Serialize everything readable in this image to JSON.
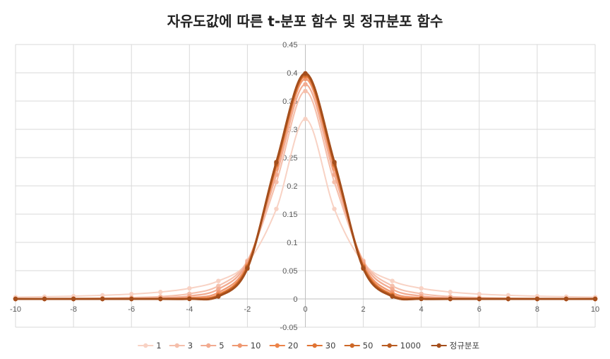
{
  "chart_data": {
    "type": "line",
    "title": "자유도값에 따른 t-분포 함수 및 정규분포 함수",
    "xlabel": "",
    "ylabel": "",
    "xlim": [
      -10,
      10
    ],
    "ylim": [
      -0.05,
      0.45
    ],
    "x_ticks": [
      "-10",
      "-8",
      "-6",
      "-4",
      "-2",
      "0",
      "2",
      "4",
      "6",
      "8",
      "10"
    ],
    "y_ticks": [
      "-0.05",
      "0",
      "0.05",
      "0.1",
      "0.15",
      "0.2",
      "0.25",
      "0.3",
      "0.35",
      "0.4",
      "0.45"
    ],
    "grid": true,
    "legend_position": "bottom",
    "x": [
      -10,
      -9,
      -8,
      -7,
      -6,
      -5,
      -4,
      -3,
      -2,
      -1,
      0,
      1,
      2,
      3,
      4,
      5,
      6,
      7,
      8,
      9,
      10
    ],
    "series": [
      {
        "name": "1",
        "color": "#f8d2c4",
        "values": [
          0.0032,
          0.0039,
          0.0049,
          0.0064,
          0.0086,
          0.0122,
          0.0187,
          0.0318,
          0.0637,
          0.1592,
          0.3183,
          0.1592,
          0.0637,
          0.0318,
          0.0187,
          0.0122,
          0.0086,
          0.0064,
          0.0049,
          0.0039,
          0.0032
        ]
      },
      {
        "name": "3",
        "color": "#f5bfab",
        "values": [
          0.0003,
          0.0005,
          0.0008,
          0.0013,
          0.0024,
          0.0042,
          0.0092,
          0.023,
          0.0675,
          0.2067,
          0.3676,
          0.2067,
          0.0675,
          0.023,
          0.0092,
          0.0042,
          0.0024,
          0.0013,
          0.0008,
          0.0005,
          0.0003
        ]
      },
      {
        "name": "5",
        "color": "#f2ab91",
        "values": [
          0.0,
          0.0001,
          0.0001,
          0.0003,
          0.0006,
          0.0018,
          0.0051,
          0.0173,
          0.0651,
          0.2197,
          0.3796,
          0.2197,
          0.0651,
          0.0173,
          0.0051,
          0.0018,
          0.0006,
          0.0003,
          0.0001,
          0.0001,
          0.0
        ]
      },
      {
        "name": "10",
        "color": "#ef9871",
        "values": [
          0.0,
          0.0,
          0.0,
          0.0001,
          0.0002,
          0.0004,
          0.002,
          0.0114,
          0.0611,
          0.2304,
          0.3891,
          0.2304,
          0.0611,
          0.0114,
          0.002,
          0.0004,
          0.0002,
          0.0001,
          0.0,
          0.0,
          0.0
        ]
      },
      {
        "name": "20",
        "color": "#ec8449",
        "values": [
          0.0,
          0.0,
          0.0,
          0.0,
          0.0,
          0.0001,
          0.0008,
          0.0075,
          0.0581,
          0.236,
          0.394,
          0.236,
          0.0581,
          0.0075,
          0.0008,
          0.0001,
          0.0,
          0.0,
          0.0,
          0.0,
          0.0
        ]
      },
      {
        "name": "30",
        "color": "#e07434",
        "values": [
          0.0,
          0.0,
          0.0,
          0.0,
          0.0,
          0.0,
          0.0004,
          0.0063,
          0.057,
          0.2379,
          0.3956,
          0.2379,
          0.057,
          0.0063,
          0.0004,
          0.0,
          0.0,
          0.0,
          0.0,
          0.0,
          0.0
        ]
      },
      {
        "name": "50",
        "color": "#cd6828",
        "values": [
          0.0,
          0.0,
          0.0,
          0.0,
          0.0,
          0.0,
          0.0003,
          0.0054,
          0.0561,
          0.2394,
          0.3969,
          0.2394,
          0.0561,
          0.0054,
          0.0003,
          0.0,
          0.0,
          0.0,
          0.0,
          0.0,
          0.0
        ]
      },
      {
        "name": "1000",
        "color": "#b95c22",
        "values": [
          0.0,
          0.0,
          0.0,
          0.0,
          0.0,
          0.0,
          0.0001,
          0.0045,
          0.0541,
          0.242,
          0.3988,
          0.242,
          0.0541,
          0.0045,
          0.0001,
          0.0,
          0.0,
          0.0,
          0.0,
          0.0,
          0.0
        ]
      },
      {
        "name": "정규분포",
        "color": "#a44e1c",
        "values": [
          0.0,
          0.0,
          0.0,
          0.0,
          0.0,
          0.0,
          0.0001,
          0.0044,
          0.054,
          0.242,
          0.3989,
          0.242,
          0.054,
          0.0044,
          0.0001,
          0.0,
          0.0,
          0.0,
          0.0,
          0.0,
          0.0
        ]
      }
    ]
  }
}
